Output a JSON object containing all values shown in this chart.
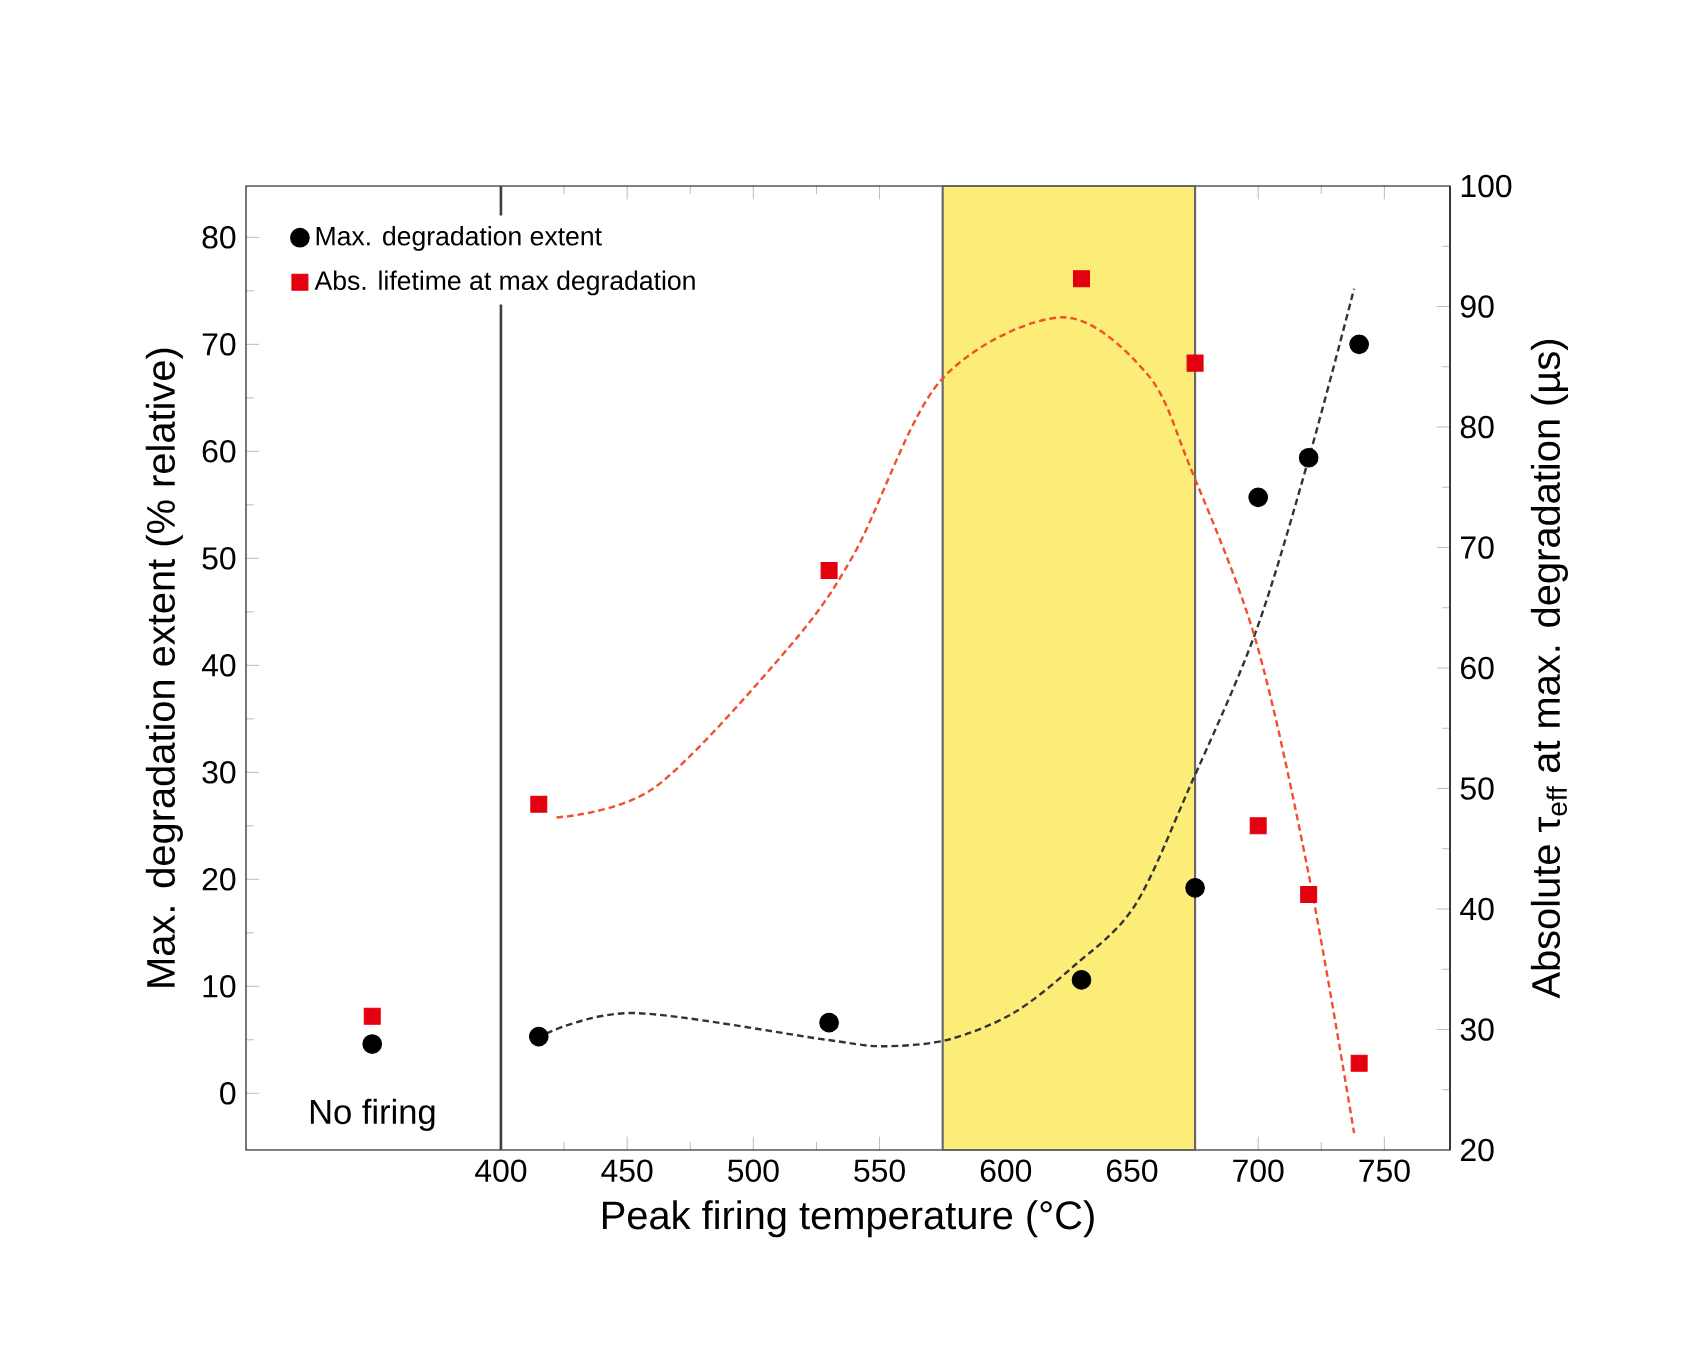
{
  "chart_data": {
    "type": "scatter",
    "xlabel": "Peak firing temperature (°C)",
    "ylabel": "Max. degradation extent (% relative)",
    "y2label": "Absolute τ$_{eff}$ at max. degradation (µs)",
    "xlim": [
      299,
      776
    ],
    "xticks": [
      400,
      450,
      500,
      550,
      600,
      650,
      700,
      750
    ],
    "ylim": [
      -5.3,
      84.8
    ],
    "yticks": [
      0,
      10,
      20,
      30,
      40,
      50,
      60,
      70,
      80
    ],
    "y2lim": [
      20,
      100
    ],
    "y2ticks": [
      20,
      30,
      40,
      50,
      60,
      70,
      80,
      90,
      100
    ],
    "legend": "top left",
    "annotations": [
      "No firing"
    ],
    "ref_lines": [
      {
        "axis": "x",
        "value": 400,
        "color": "#404040"
      }
    ],
    "bands": [
      {
        "axis": "x",
        "from": 575,
        "to": 675,
        "color": "#fced78"
      }
    ],
    "series": [
      {
        "name": "Max. degradation extent",
        "marker": "circle",
        "color": "#000000",
        "x": [
          349,
          415,
          530,
          630,
          675,
          700,
          720,
          740
        ],
        "values": [
          4.6,
          5.3,
          6.6,
          10.6,
          19.2,
          55.7,
          59.4,
          70.0
        ]
      },
      {
        "name": "Abs. lifetime at max degradation",
        "marker": "square",
        "color": "#e3000f",
        "axis": "y2",
        "x": [
          349,
          415,
          530,
          630,
          675,
          700,
          720,
          740
        ],
        "values": [
          31.1,
          48.7,
          68.1,
          92.3,
          85.3,
          46.9,
          41.2,
          27.2
        ]
      },
      {
        "type": "line",
        "marker": "none",
        "line_style": "dashed",
        "color": "#333333",
        "x": [
          418,
          453,
          529,
          551,
          577,
          603,
          627,
          651,
          673,
          699,
          720,
          738
        ],
        "values": [
          5.6,
          7.5,
          5.0,
          4.4,
          5.0,
          7.5,
          11.9,
          17.5,
          28.7,
          43.1,
          59.3,
          75.2
        ]
      },
      {
        "type": "line",
        "marker": "none",
        "line_style": "dashed",
        "color": "#f0502d",
        "axis": "y2",
        "x": [
          422,
          461,
          514,
          540,
          574,
          622,
          656,
          673,
          699,
          720,
          738
        ],
        "values": [
          47.6,
          50.1,
          61.7,
          69.5,
          83.8,
          89.1,
          84.4,
          76.7,
          62.3,
          42.9,
          21.4
        ]
      }
    ]
  }
}
